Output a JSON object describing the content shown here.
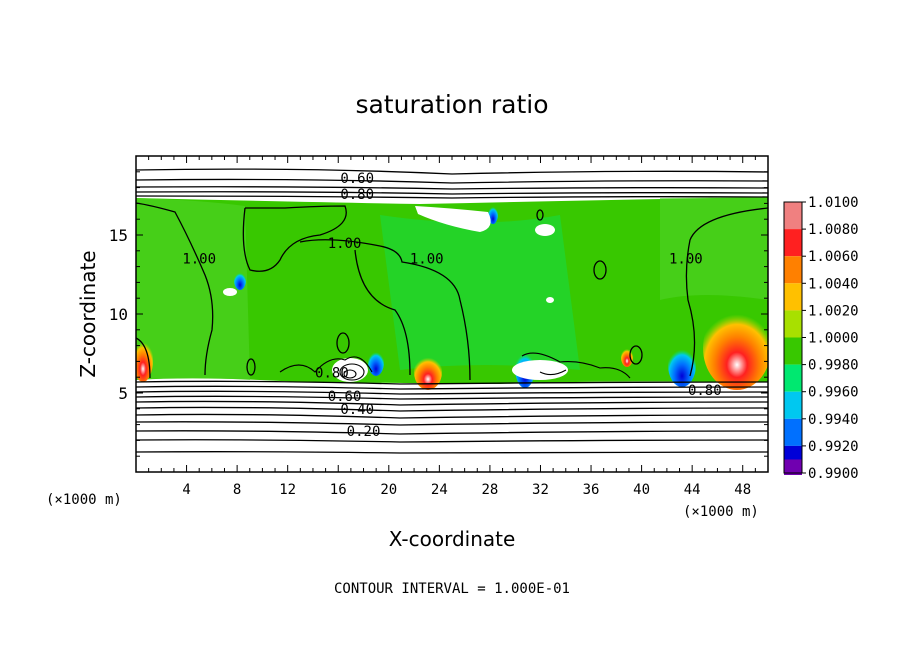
{
  "chart_data": {
    "type": "heatmap",
    "title": "saturation ratio",
    "xlabel": "X-coordinate",
    "ylabel": "Z-coordinate",
    "x_unit": "(×1000 m)",
    "z_unit": "(×1000 m)",
    "xlim": [
      0,
      50
    ],
    "ylim": [
      0,
      20
    ],
    "x_ticks": [
      "4",
      "8",
      "12",
      "16",
      "20",
      "24",
      "28",
      "32",
      "36",
      "40",
      "44",
      "48"
    ],
    "y_ticks": [
      "5",
      "10",
      "15"
    ],
    "footer": "CONTOUR INTERVAL = 1.000E-01",
    "colorbar": {
      "labels": [
        "1.0100",
        "1.0080",
        "1.0060",
        "1.0040",
        "1.0020",
        "1.0000",
        "0.9980",
        "0.9960",
        "0.9940",
        "0.9920",
        "0.9900"
      ],
      "colors": [
        "#f08080",
        "#ff2020",
        "#ff8000",
        "#ffc000",
        "#a8e000",
        "#38c800",
        "#00e870",
        "#00c8f0",
        "#0070ff",
        "#0000d8",
        "#7000b0"
      ]
    },
    "contour_labels": [
      {
        "text": "0.60",
        "x": 17.5,
        "z": 18.6
      },
      {
        "text": "0.80",
        "x": 17.5,
        "z": 17.6
      },
      {
        "text": "1.00",
        "x": 5,
        "z": 13.5
      },
      {
        "text": "1.00",
        "x": 16.5,
        "z": 14.5
      },
      {
        "text": "1.00",
        "x": 23,
        "z": 13.5
      },
      {
        "text": "1.00",
        "x": 43.5,
        "z": 13.5
      },
      {
        "text": "0.80",
        "x": 15.5,
        "z": 6.3
      },
      {
        "text": "0.60",
        "x": 16.5,
        "z": 4.8
      },
      {
        "text": "0.40",
        "x": 17.5,
        "z": 4.0
      },
      {
        "text": "0.20",
        "x": 18.0,
        "z": 2.6
      },
      {
        "text": "0.80",
        "x": 45.0,
        "z": 5.2
      }
    ]
  }
}
